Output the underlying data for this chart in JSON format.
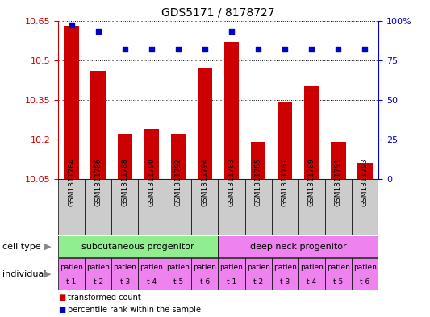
{
  "title": "GDS5171 / 8178727",
  "samples": [
    "GSM1311784",
    "GSM1311786",
    "GSM1311788",
    "GSM1311790",
    "GSM1311792",
    "GSM1311794",
    "GSM1311783",
    "GSM1311785",
    "GSM1311787",
    "GSM1311789",
    "GSM1311791",
    "GSM1311793"
  ],
  "transformed_count": [
    10.63,
    10.46,
    10.22,
    10.24,
    10.22,
    10.47,
    10.57,
    10.19,
    10.34,
    10.4,
    10.19,
    10.11
  ],
  "percentile_rank": [
    97,
    93,
    82,
    82,
    82,
    82,
    93,
    82,
    82,
    82,
    82,
    82
  ],
  "ylim_left": [
    10.05,
    10.65
  ],
  "ylim_right": [
    0,
    100
  ],
  "yticks_left": [
    10.05,
    10.2,
    10.35,
    10.5,
    10.65
  ],
  "yticks_right": [
    0,
    25,
    50,
    75,
    100
  ],
  "cell_type_groups": [
    {
      "label": "subcutaneous progenitor",
      "start": 0,
      "end": 6,
      "color": "#90ee90"
    },
    {
      "label": "deep neck progenitor",
      "start": 6,
      "end": 12,
      "color": "#ee82ee"
    }
  ],
  "individual_labels": [
    "t 1",
    "t 2",
    "t 3",
    "t 4",
    "t 5",
    "t 6",
    "t 1",
    "t 2",
    "t 3",
    "t 4",
    "t 5",
    "t 6"
  ],
  "individual_prefix": "patien",
  "individual_color": "#ee82ee",
  "sample_band_color": "#cccccc",
  "bar_color": "#cc0000",
  "dot_color": "#0000cc",
  "background_color": "#ffffff",
  "cell_type_label": "cell type",
  "individual_label": "individual",
  "legend_bar": "transformed count",
  "legend_dot": "percentile rank within the sample",
  "axis_color_left": "#cc0000",
  "axis_color_right": "#0000cc"
}
